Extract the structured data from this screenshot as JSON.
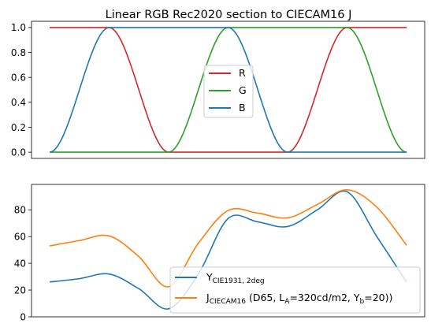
{
  "chart_data": [
    {
      "type": "line",
      "title": "Linear RGB Rec2020 section to CIECAM16 J",
      "xlabel": "",
      "ylabel": "",
      "xlim": [
        0,
        6
      ],
      "ylim": [
        -0.05,
        1.05
      ],
      "yticks": [
        "0.0",
        "0.2",
        "0.4",
        "0.6",
        "0.8",
        "1.0"
      ],
      "x_ticks_shown": false,
      "grid": false,
      "legend_position": "center",
      "x": [
        0,
        1,
        2,
        3,
        4,
        5,
        6
      ],
      "series": [
        {
          "name": "R",
          "color": "#d62728",
          "values": [
            1,
            1,
            0,
            0,
            0,
            1,
            1
          ]
        },
        {
          "name": "G",
          "color": "#2ca02c",
          "values": [
            0,
            0,
            0,
            1,
            1,
            1,
            0
          ]
        },
        {
          "name": "B",
          "color": "#1f77b4",
          "values": [
            0,
            1,
            1,
            1,
            0,
            0,
            0
          ]
        }
      ]
    },
    {
      "type": "line",
      "title": "",
      "xlabel": "",
      "ylabel": "",
      "xlim": [
        0,
        6
      ],
      "ylim": [
        0,
        99
      ],
      "yticks": [
        "0",
        "20",
        "40",
        "60",
        "80"
      ],
      "x_ticks_shown": false,
      "grid": false,
      "legend_position": "lower-right",
      "series": [
        {
          "name_main": "Y",
          "name_sub": "CIE1931, 2deg",
          "color": "#1f77b4",
          "x": [
            0,
            0.5,
            1,
            1.5,
            2,
            2.5,
            3,
            3.5,
            4,
            4.5,
            5,
            5.5,
            6
          ],
          "values": [
            26,
            28.5,
            32,
            21,
            6,
            32,
            73.5,
            71,
            67.5,
            80,
            93.5,
            60,
            26
          ]
        },
        {
          "name_main": "J",
          "name_sub": "CIECAM16",
          "name_rest_1": " (D65, L",
          "name_sub_2": "A",
          "name_rest_2": "=320cd/m2, Y",
          "name_sub_3": "b",
          "name_rest_3": "=20))",
          "color": "#ff7f0e",
          "x": [
            0,
            0.5,
            1,
            1.5,
            2,
            2.5,
            3,
            3.5,
            4,
            4.5,
            5,
            5.5,
            6
          ],
          "values": [
            53,
            57,
            60.5,
            45,
            22.5,
            55,
            79.5,
            77.5,
            74,
            84,
            95,
            82,
            53.5
          ]
        }
      ]
    }
  ]
}
